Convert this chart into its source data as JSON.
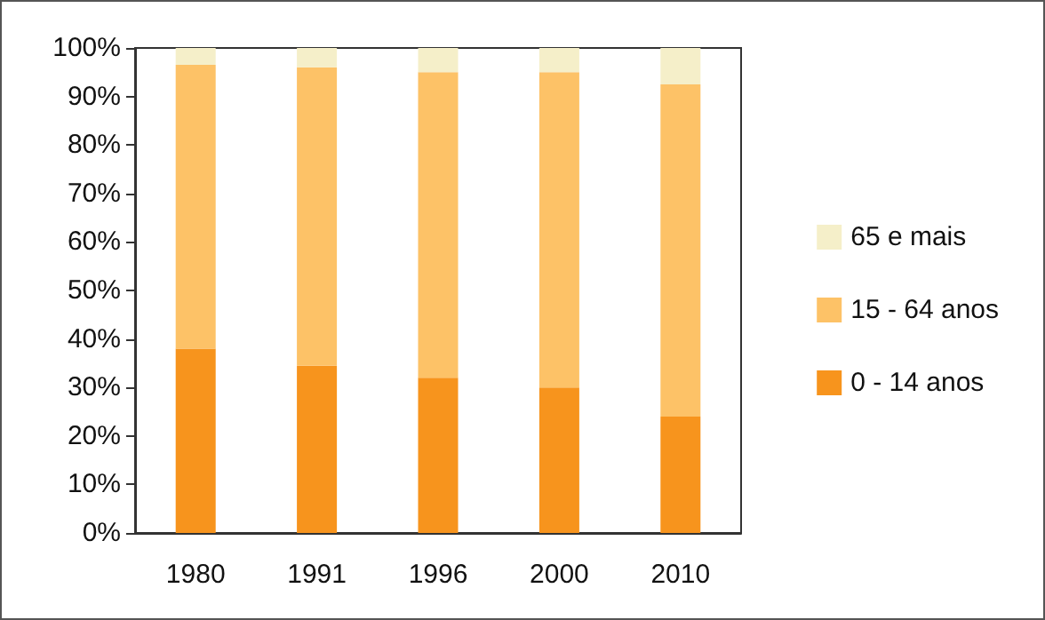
{
  "chart_data": {
    "type": "bar",
    "stacked": true,
    "categories": [
      "1980",
      "1991",
      "1996",
      "2000",
      "2010"
    ],
    "series": [
      {
        "name": "0 - 14 anos",
        "color": "#f7941d",
        "values": [
          38,
          34.5,
          32,
          30,
          24
        ]
      },
      {
        "name": "15 - 64 anos",
        "color": "#fdc267",
        "values": [
          58.5,
          61.5,
          63,
          65,
          68.5
        ]
      },
      {
        "name": "65 e mais",
        "color": "#f5efc9",
        "values": [
          3.5,
          4,
          5,
          5,
          7.5
        ]
      }
    ],
    "ylim": [
      0,
      100
    ],
    "yticks": [
      {
        "value": 0,
        "label": "0%"
      },
      {
        "value": 10,
        "label": "10%"
      },
      {
        "value": 20,
        "label": "20%"
      },
      {
        "value": 30,
        "label": "30%"
      },
      {
        "value": 40,
        "label": "40%"
      },
      {
        "value": 50,
        "label": "50%"
      },
      {
        "value": 60,
        "label": "60%"
      },
      {
        "value": 70,
        "label": "70%"
      },
      {
        "value": 80,
        "label": "80%"
      },
      {
        "value": 90,
        "label": "90%"
      },
      {
        "value": 100,
        "label": "100%"
      }
    ],
    "grid": false,
    "legend": "right"
  }
}
